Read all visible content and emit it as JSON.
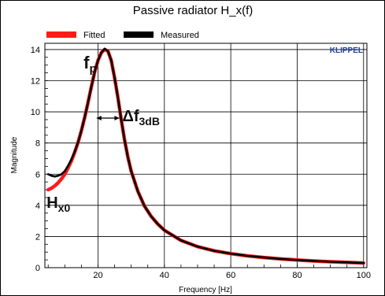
{
  "chart_data": {
    "type": "line",
    "title": "Passive radiator H_x(f)",
    "xlabel": "Frequency [Hz]",
    "ylabel": "Magnitude",
    "brand": "KLIPPEL",
    "xlim": [
      4,
      101
    ],
    "ylim": [
      0,
      14.4
    ],
    "xticks": [
      20,
      40,
      60,
      80,
      100
    ],
    "yticks": [
      0,
      2,
      4,
      6,
      8,
      10,
      12,
      14
    ],
    "grid": true,
    "legend_position": "top-left",
    "series": [
      {
        "name": "Fitted",
        "color": "#ff1a1a",
        "x": [
          5,
          6,
          7,
          8,
          9,
          10,
          11,
          12,
          13,
          14,
          15,
          16,
          17,
          18,
          19,
          20,
          21,
          22,
          23,
          24,
          25,
          26,
          27,
          28,
          29,
          30,
          32,
          34,
          36,
          38,
          40,
          45,
          50,
          55,
          60,
          65,
          70,
          75,
          80,
          85,
          90,
          95,
          100
        ],
        "values": [
          5.0,
          5.1,
          5.25,
          5.45,
          5.7,
          6.0,
          6.4,
          6.85,
          7.4,
          8.05,
          8.8,
          9.65,
          10.6,
          11.6,
          12.55,
          13.3,
          13.8,
          14.0,
          13.9,
          13.3,
          12.2,
          10.9,
          9.5,
          8.2,
          7.1,
          6.2,
          4.9,
          3.95,
          3.3,
          2.8,
          2.4,
          1.75,
          1.35,
          1.08,
          0.9,
          0.76,
          0.65,
          0.56,
          0.49,
          0.43,
          0.38,
          0.34,
          0.3
        ]
      },
      {
        "name": "Measured",
        "color": "#000000",
        "x": [
          5,
          6,
          7,
          8,
          9,
          10,
          11,
          12,
          13,
          14,
          15,
          16,
          17,
          18,
          19,
          20,
          21,
          22,
          23,
          24,
          25,
          26,
          27,
          28,
          29,
          30,
          32,
          34,
          36,
          38,
          40,
          45,
          50,
          55,
          60,
          65,
          70,
          75,
          80,
          85,
          90,
          95,
          100
        ],
        "values": [
          6.0,
          5.9,
          5.85,
          5.9,
          6.0,
          6.2,
          6.55,
          6.95,
          7.45,
          8.05,
          8.8,
          9.65,
          10.6,
          11.6,
          12.55,
          13.3,
          13.8,
          14.05,
          13.9,
          13.3,
          12.2,
          10.9,
          9.5,
          8.2,
          7.1,
          6.2,
          4.9,
          3.95,
          3.3,
          2.8,
          2.4,
          1.75,
          1.35,
          1.08,
          0.9,
          0.76,
          0.65,
          0.56,
          0.49,
          0.43,
          0.38,
          0.34,
          0.3
        ]
      }
    ],
    "annotations": {
      "fp": {
        "main": "f",
        "sub": "p",
        "x": 23,
        "y": 14
      },
      "df3db": {
        "main": "Δf",
        "sub": "3dB",
        "x_from": 19.6,
        "x_to": 26.4,
        "y": 9.6
      },
      "hx0": {
        "main": "H",
        "sub": "x0",
        "x": 5,
        "y": 5
      }
    }
  }
}
